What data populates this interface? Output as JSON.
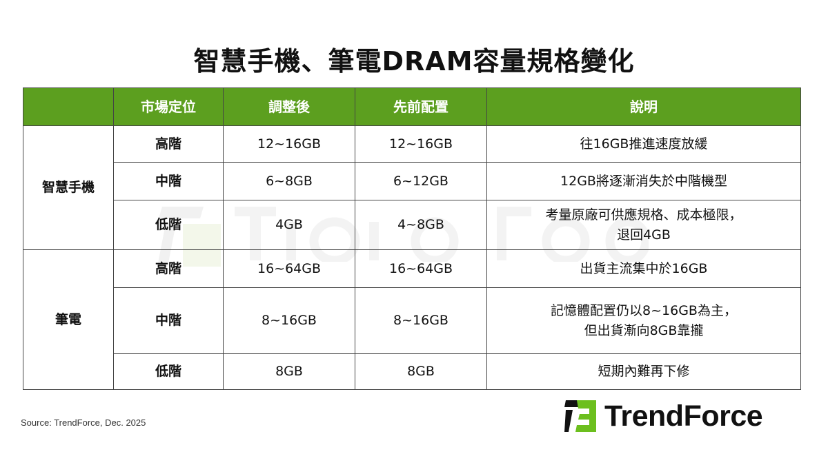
{
  "title": "智慧手機、筆電DRAM容量規格變化",
  "table": {
    "headers": [
      "",
      "市場定位",
      "調整後",
      "先前配置",
      "說明"
    ],
    "groups": [
      {
        "category": "智慧手機",
        "rows": [
          {
            "level": "高階",
            "adjusted": "12~16GB",
            "previous": "12~16GB",
            "note": [
              "往16GB推進速度放緩"
            ]
          },
          {
            "level": "中階",
            "adjusted": "6~8GB",
            "previous": "6~12GB",
            "note": [
              "12GB將逐漸消失於中階機型"
            ]
          },
          {
            "level": "低階",
            "adjusted": "4GB",
            "previous": "4~8GB",
            "note": [
              "考量原廠可供應規格、成本極限，",
              "退回4GB"
            ]
          }
        ]
      },
      {
        "category": "筆電",
        "rows": [
          {
            "level": "高階",
            "adjusted": "16~64GB",
            "previous": "16~64GB",
            "note": [
              "出貨主流集中於16GB"
            ]
          },
          {
            "level": "中階",
            "adjusted": "8~16GB",
            "previous": "8~16GB",
            "note": [
              "記憶體配置仍以8~16GB為主，",
              "但出貨漸向8GB靠攏"
            ]
          },
          {
            "level": "低階",
            "adjusted": "8GB",
            "previous": "8GB",
            "note": [
              "短期內難再下修"
            ]
          }
        ]
      }
    ]
  },
  "source": "Source: TrendForce,  Dec. 2025",
  "logo": {
    "text": "TrendForce"
  },
  "watermark": "TrendForce",
  "colors": {
    "header_bg": "#5c9f1f",
    "header_text": "#ffffff",
    "logo_green": "#6cbf1e",
    "logo_black": "#111111"
  }
}
